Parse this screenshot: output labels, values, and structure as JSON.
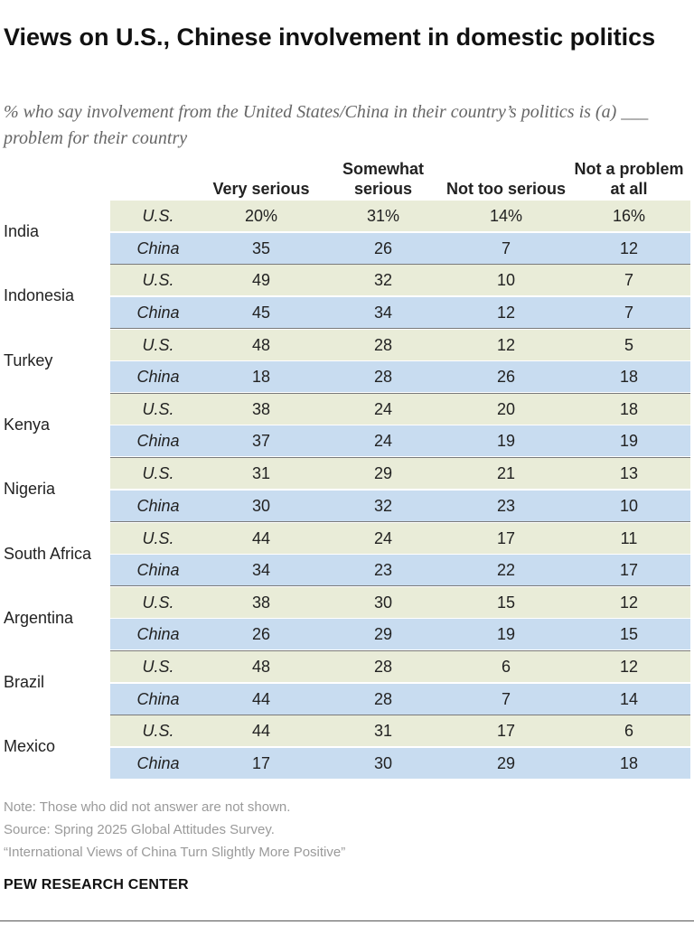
{
  "title": "Views on U.S., Chinese involvement in domestic politics",
  "subtitle": "% who say involvement from the United States/China in their country’s politics is (a) ___ problem for their country",
  "chart_data": {
    "type": "table",
    "columns": [
      "Very serious",
      "Somewhat serious",
      "Not too serious",
      "Not a problem at all"
    ],
    "row_labels": [
      "U.S.",
      "China"
    ],
    "groups": [
      {
        "country": "India",
        "rows": [
          {
            "label": "U.S.",
            "values": [
              "20%",
              "31%",
              "14%",
              "16%"
            ]
          },
          {
            "label": "China",
            "values": [
              "35",
              "26",
              "7",
              "12"
            ]
          }
        ]
      },
      {
        "country": "Indonesia",
        "rows": [
          {
            "label": "U.S.",
            "values": [
              "49",
              "32",
              "10",
              "7"
            ]
          },
          {
            "label": "China",
            "values": [
              "45",
              "34",
              "12",
              "7"
            ]
          }
        ]
      },
      {
        "country": "Turkey",
        "rows": [
          {
            "label": "U.S.",
            "values": [
              "48",
              "28",
              "12",
              "5"
            ]
          },
          {
            "label": "China",
            "values": [
              "18",
              "28",
              "26",
              "18"
            ]
          }
        ]
      },
      {
        "country": "Kenya",
        "rows": [
          {
            "label": "U.S.",
            "values": [
              "38",
              "24",
              "20",
              "18"
            ]
          },
          {
            "label": "China",
            "values": [
              "37",
              "24",
              "19",
              "19"
            ]
          }
        ]
      },
      {
        "country": "Nigeria",
        "rows": [
          {
            "label": "U.S.",
            "values": [
              "31",
              "29",
              "21",
              "13"
            ]
          },
          {
            "label": "China",
            "values": [
              "30",
              "32",
              "23",
              "10"
            ]
          }
        ]
      },
      {
        "country": "South Africa",
        "rows": [
          {
            "label": "U.S.",
            "values": [
              "44",
              "24",
              "17",
              "11"
            ]
          },
          {
            "label": "China",
            "values": [
              "34",
              "23",
              "22",
              "17"
            ]
          }
        ]
      },
      {
        "country": "Argentina",
        "rows": [
          {
            "label": "U.S.",
            "values": [
              "38",
              "30",
              "15",
              "12"
            ]
          },
          {
            "label": "China",
            "values": [
              "26",
              "29",
              "19",
              "15"
            ]
          }
        ]
      },
      {
        "country": "Brazil",
        "rows": [
          {
            "label": "U.S.",
            "values": [
              "48",
              "28",
              "6",
              "12"
            ]
          },
          {
            "label": "China",
            "values": [
              "44",
              "28",
              "7",
              "14"
            ]
          }
        ]
      },
      {
        "country": "Mexico",
        "rows": [
          {
            "label": "U.S.",
            "values": [
              "44",
              "31",
              "17",
              "6"
            ]
          },
          {
            "label": "China",
            "values": [
              "17",
              "30",
              "29",
              "18"
            ]
          }
        ]
      }
    ]
  },
  "colors": {
    "us_row": "#e9ecd8",
    "china_row": "#c8dcf0"
  },
  "footer": {
    "note": "Note: Those who did not answer are not shown.",
    "source": "Source: Spring 2025 Global Attitudes Survey.",
    "report": "“International Views of China Turn Slightly More Positive”",
    "brand": "PEW RESEARCH CENTER"
  }
}
